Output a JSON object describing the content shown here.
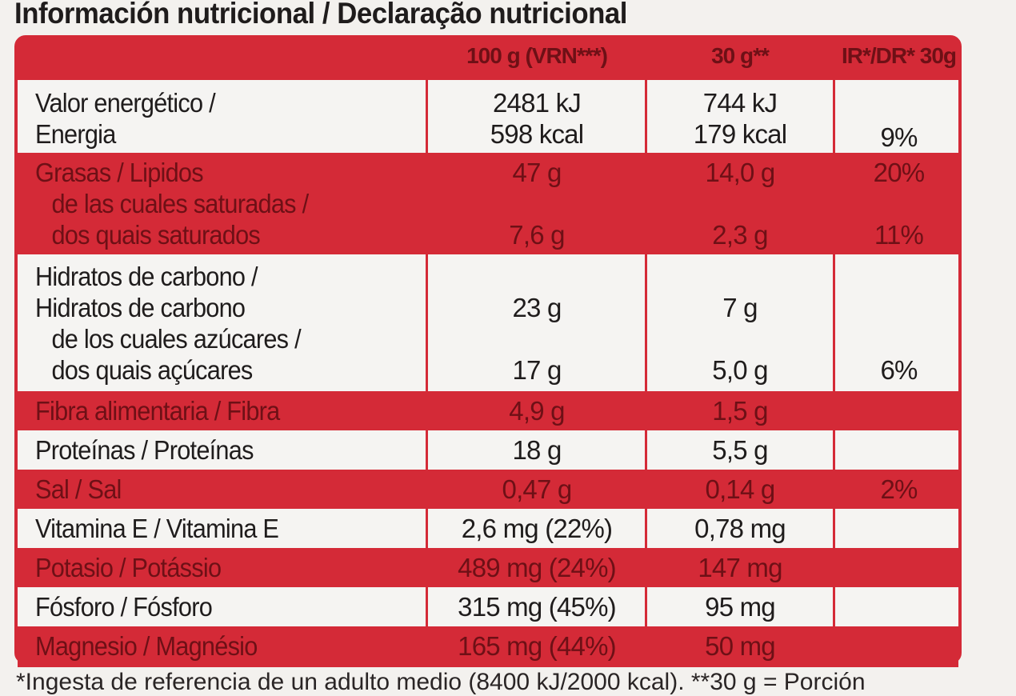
{
  "title": "Información nutricional / Declaração nutricional",
  "columns": [
    "100 g (VRN***)",
    "30 g**",
    "IR*/DR* 30g"
  ],
  "rows": [
    {
      "lines": [
        "Valor energético /",
        "Energia"
      ],
      "v1": [
        "2481 kJ",
        "598 kcal"
      ],
      "v2": [
        "744 kJ",
        "179 kcal"
      ],
      "v3": "9%"
    },
    {
      "lines": [
        "Grasas / Lipidos",
        "de las cuales saturadas /",
        "dos quais saturados"
      ],
      "v1": [
        "47 g",
        "7,6 g"
      ],
      "v2": [
        "14,0 g",
        "2,3 g"
      ],
      "v3": [
        "20%",
        "11%"
      ]
    },
    {
      "lines": [
        "Hidratos de carbono /",
        "Hidratos de carbono",
        "de los cuales azúcares /",
        "dos quais açúcares"
      ],
      "v1": [
        "23 g",
        "17 g"
      ],
      "v2": [
        "7 g",
        "5,0 g"
      ],
      "v3": "6%"
    },
    {
      "label": "Fibra alimentaria / Fibra",
      "v1": "4,9 g",
      "v2": "1,5 g",
      "v3": ""
    },
    {
      "label": "Proteínas / Proteínas",
      "v1": "18 g",
      "v2": "5,5 g",
      "v3": ""
    },
    {
      "label": "Sal / Sal",
      "v1": "0,47 g",
      "v2": "0,14 g",
      "v3": "2%"
    },
    {
      "label": "Vitamina E / Vitamina E",
      "v1": "2,6 mg (22%)",
      "v2": "0,78 mg",
      "v3": ""
    },
    {
      "label": "Potasio / Potássio",
      "v1": "489 mg (24%)",
      "v2": "147 mg",
      "v3": ""
    },
    {
      "label": "Fósforo / Fósforo",
      "v1": "315 mg (45%)",
      "v2": "95 mg",
      "v3": ""
    },
    {
      "label": "Magnesio / Magnésio",
      "v1": "165 mg (44%)",
      "v2": "50 mg",
      "v3": ""
    }
  ],
  "footer": "*Ingesta de referencia de un adulto medio (8400 kJ/2000 kcal). **30 g = Porción"
}
